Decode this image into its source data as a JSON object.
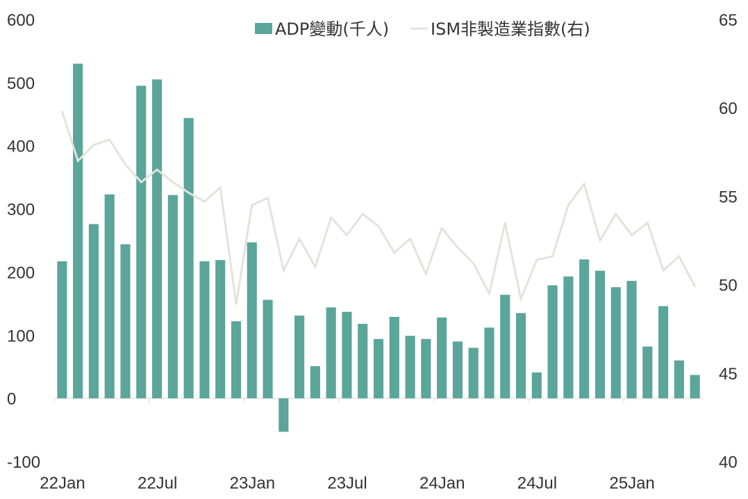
{
  "chart_data": {
    "type": "bar",
    "x": [
      "22Jan",
      "22Feb",
      "22Mar",
      "22Apr",
      "22May",
      "22Jun",
      "22Jul",
      "22Aug",
      "22Sep",
      "22Oct",
      "22Nov",
      "22Dec",
      "23Jan",
      "23Feb",
      "23Mar",
      "23Apr",
      "23May",
      "23Jun",
      "23Jul",
      "23Aug",
      "23Sep",
      "23Oct",
      "23Nov",
      "23Dec",
      "24Jan",
      "24Feb",
      "24Mar",
      "24Apr",
      "24May",
      "24Jun",
      "24Jul",
      "24Aug",
      "24Sep",
      "24Oct",
      "24Nov",
      "24Dec",
      "25Jan",
      "25Feb",
      "25Mar",
      "25Apr",
      "25May"
    ],
    "x_tick_labels": [
      "22Jan",
      "22Jul",
      "23Jan",
      "23Jul",
      "24Jan",
      "24Jul",
      "25Jan"
    ],
    "x_tick_indices": [
      0,
      6,
      12,
      18,
      24,
      30,
      36
    ],
    "series": [
      {
        "name": "ADP變動(千人)",
        "type": "bar",
        "axis": "left",
        "color": "#5ba59b",
        "values": [
          217,
          530,
          276,
          323,
          244,
          495,
          505,
          322,
          444,
          217,
          219,
          122,
          247,
          156,
          -53,
          131,
          51,
          144,
          137,
          118,
          94,
          129,
          99,
          94,
          128,
          90,
          80,
          112,
          164,
          135,
          41,
          179,
          193,
          220,
          202,
          176,
          186,
          82,
          146,
          60,
          37
        ]
      },
      {
        "name": "ISM非製造業指數(右)",
        "type": "line",
        "axis": "right",
        "color": "#e3e3dc",
        "values": [
          59.8,
          57.0,
          57.9,
          58.2,
          56.8,
          55.8,
          56.5,
          55.8,
          55.2,
          54.7,
          55.5,
          48.9,
          54.5,
          54.9,
          50.8,
          52.6,
          51.0,
          53.8,
          52.8,
          54.0,
          53.3,
          51.8,
          52.6,
          50.6,
          53.2,
          52.1,
          51.2,
          49.5,
          53.5,
          49.2,
          51.4,
          51.6,
          54.5,
          55.7,
          52.5,
          54.0,
          52.8,
          53.5,
          50.8,
          51.6,
          49.9
        ]
      }
    ],
    "ylim_left": [
      -100,
      600
    ],
    "ylim_right": [
      40,
      65
    ],
    "yticks_left": [
      "-100",
      "0",
      "100",
      "200",
      "300",
      "400",
      "500",
      "600"
    ],
    "yticks_right": [
      "40",
      "45",
      "50",
      "55",
      "60",
      "65"
    ],
    "legend_position": "top-center",
    "grid": false
  }
}
